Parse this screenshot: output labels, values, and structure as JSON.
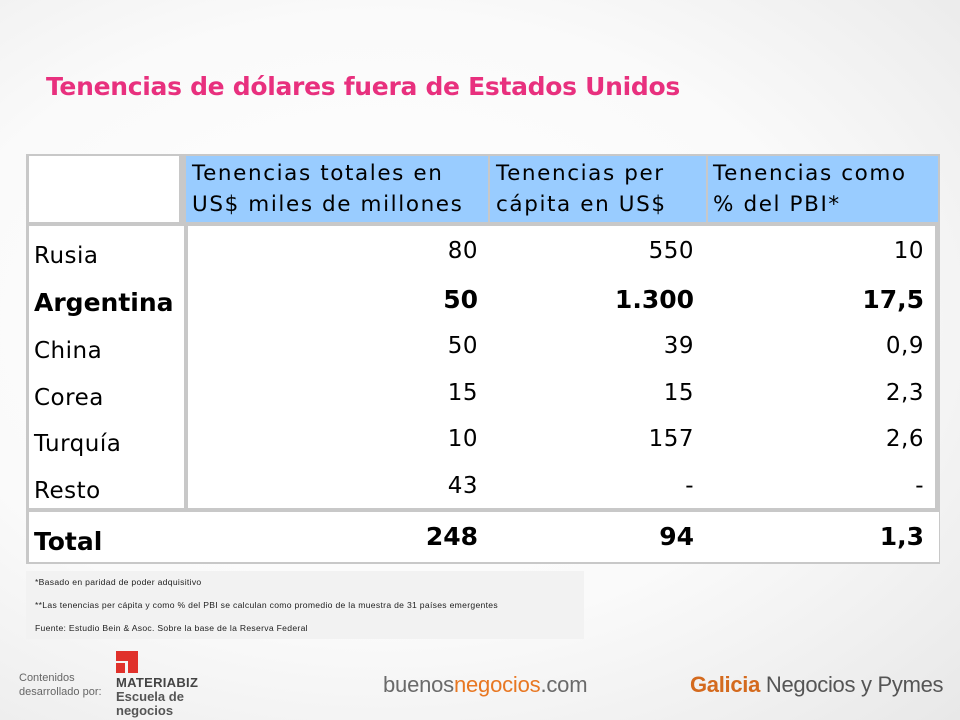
{
  "title": "Tenencias de dólares fuera de Estados Unidos",
  "header": {
    "col1": [
      "Tenencias totales en",
      "US$ miles de millones"
    ],
    "col2": [
      "Tenencias per",
      "cápita en US$"
    ],
    "col3": [
      "Tenencias como",
      "% del PBI*"
    ]
  },
  "rows": [
    {
      "label": "Rusia",
      "total": "80",
      "per_capita": "550",
      "pbi": "10",
      "bold": false
    },
    {
      "label": "Argentina",
      "total": "50",
      "per_capita": "1.300",
      "pbi": "17,5",
      "bold": true
    },
    {
      "label": "China",
      "total": "50",
      "per_capita": "39",
      "pbi": "0,9",
      "bold": false
    },
    {
      "label": "Corea",
      "total": "15",
      "per_capita": "15",
      "pbi": "2,3",
      "bold": false
    },
    {
      "label": "Turquía",
      "total": "10",
      "per_capita": "157",
      "pbi": "2,6",
      "bold": false
    },
    {
      "label": "Resto",
      "total": "43",
      "per_capita": "-",
      "pbi": "-",
      "bold": false
    }
  ],
  "total_row": {
    "label": "Total",
    "total": "248",
    "per_capita": "94",
    "pbi": "1,3"
  },
  "notes": [
    "*Basado en paridad de poder adquisitivo",
    "**Las tenencias per cápita y como % del PBI se calculan como promedio de la muestra de 31 países emergentes",
    "Fuente: Estudio Bein & Asoc. Sobre la base de la Reserva Federal"
  ],
  "footer": {
    "contenidos": [
      "Contenidos",
      "desarrollado por:"
    ],
    "materiabiz": [
      "MATERIABIZ",
      "Escuela de",
      "negocios"
    ],
    "buenos": {
      "a": "buenos",
      "b": "negocios",
      "c": ".com"
    },
    "galicia": {
      "a": "Galicia",
      "b": " Negocios y Pymes"
    }
  },
  "colors": {
    "title": "#e8307e",
    "header_bg": "#99ccff",
    "accent_orange": "#e87722",
    "materiabiz_red": "#e0312b"
  }
}
